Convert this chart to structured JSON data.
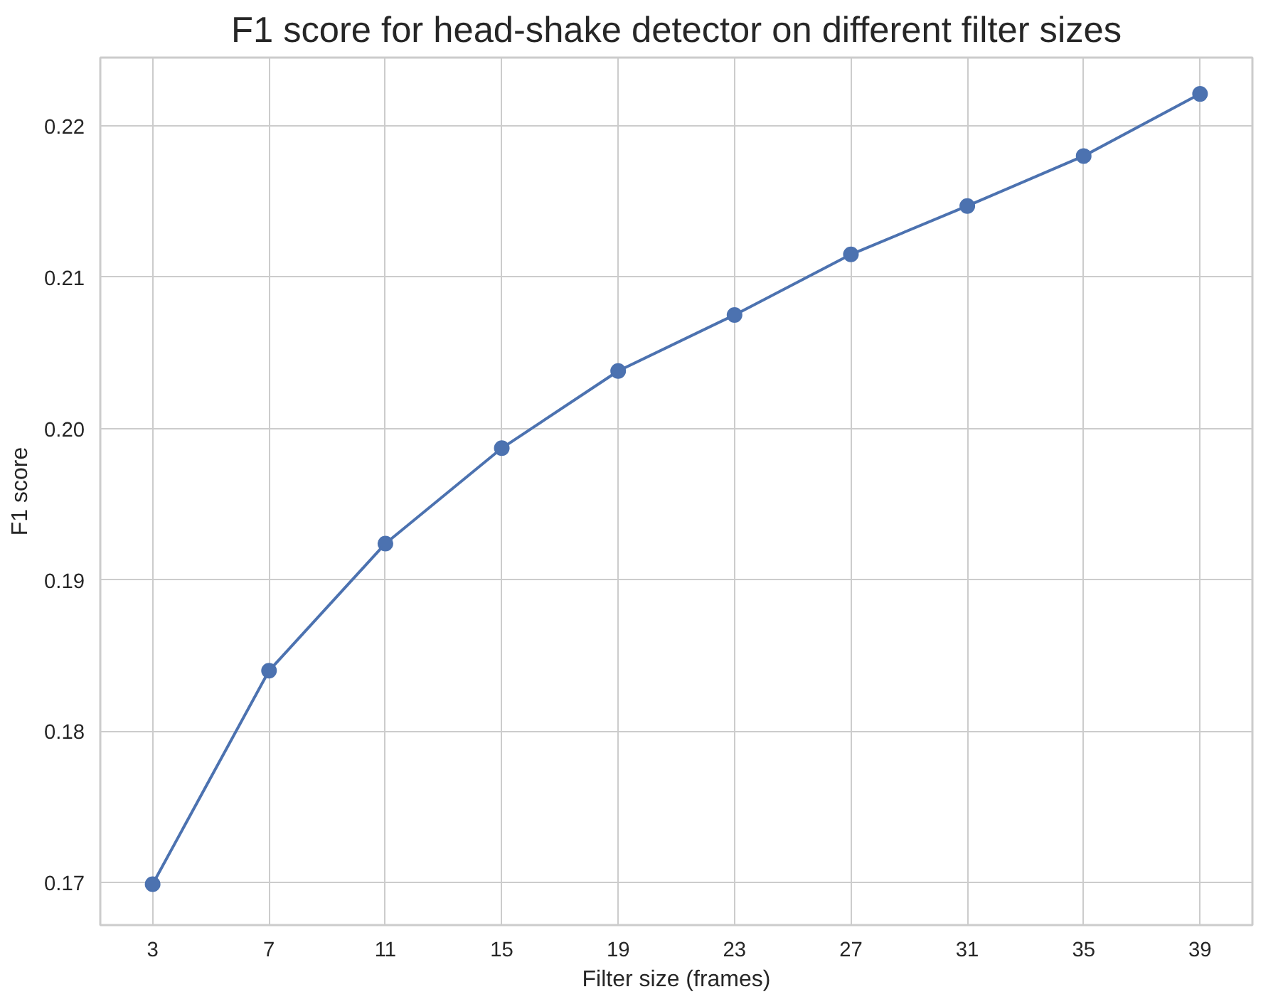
{
  "chart_data": {
    "type": "line",
    "title": "F1 score for head-shake detector on different filter sizes",
    "xlabel": "Filter size (frames)",
    "ylabel": "F1 score",
    "x": [
      3,
      7,
      11,
      15,
      19,
      23,
      27,
      31,
      35,
      39
    ],
    "series": [
      {
        "color": "#4c72b0",
        "values": [
          0.1699,
          0.184,
          0.1924,
          0.1987,
          0.2038,
          0.2075,
          0.2115,
          0.2147,
          0.218,
          0.2221
        ]
      }
    ],
    "xlim": [
      1.2,
      40.8
    ],
    "xticks": [
      3,
      7,
      11,
      15,
      19,
      23,
      27,
      31,
      35,
      39
    ],
    "ylim": [
      0.1672,
      0.2245
    ],
    "yticks": [
      {
        "value": 0.17,
        "label": "0.17"
      },
      {
        "value": 0.18,
        "label": "0.18"
      },
      {
        "value": 0.19,
        "label": "0.19"
      },
      {
        "value": 0.2,
        "label": "0.20"
      },
      {
        "value": 0.21,
        "label": "0.21"
      },
      {
        "value": 0.22,
        "label": "0.22"
      }
    ],
    "grid": true,
    "marker": "circle",
    "line_style": "solid"
  }
}
